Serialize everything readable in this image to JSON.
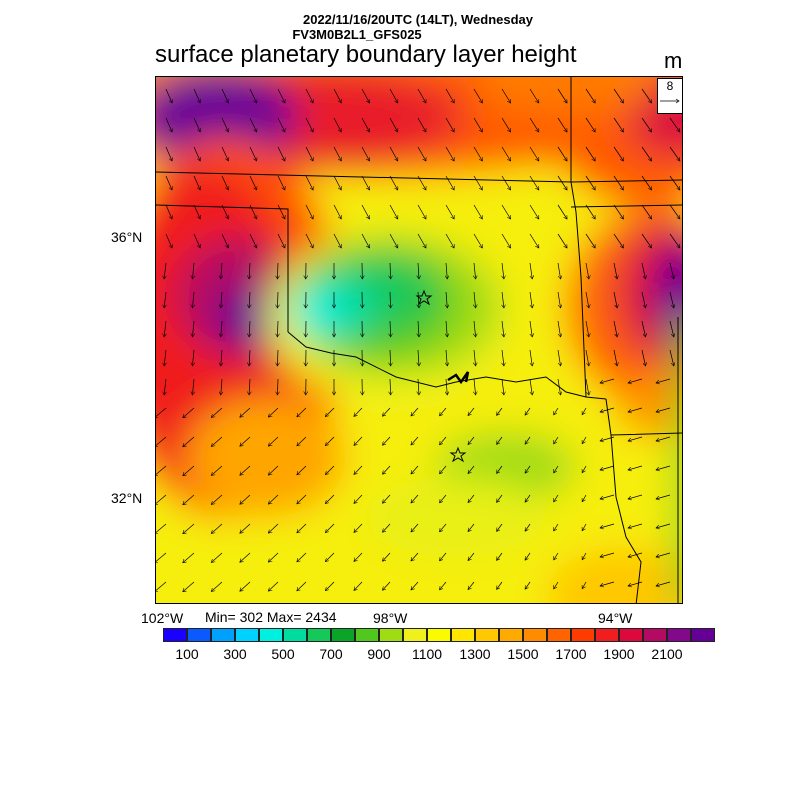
{
  "header": {
    "datetime": "2022/11/16/20UTC (14LT), Wednesday",
    "run": "FV3M0B2L1_GFS025",
    "title": "surface planetary boundary layer height",
    "unit": "m"
  },
  "map": {
    "lat_labels": [
      "36°N",
      "32°N"
    ],
    "lon_labels": [
      "102°W",
      "98°W",
      "94°W"
    ],
    "stats": "Min= 302 Max= 2434",
    "reference_vector_label": "8",
    "markers": [
      "star",
      "star"
    ]
  },
  "colorbar": {
    "colors": [
      "#1a00ff",
      "#0a5aff",
      "#00a0ff",
      "#00d2ff",
      "#00f0e0",
      "#00dca0",
      "#14c85a",
      "#0aa528",
      "#50c81e",
      "#a0dc14",
      "#f0f01e",
      "#fafa00",
      "#ffe600",
      "#ffc800",
      "#ffaa00",
      "#ff8c00",
      "#ff6400",
      "#ff3c00",
      "#f01e1e",
      "#dc0a3c",
      "#b40a64",
      "#82088c",
      "#640096"
    ],
    "labels": [
      "100",
      "300",
      "500",
      "700",
      "900",
      "1100",
      "1300",
      "1500",
      "1700",
      "1900",
      "2100"
    ]
  },
  "colors": {
    "outline": "#000000",
    "background": "#ffffff"
  }
}
